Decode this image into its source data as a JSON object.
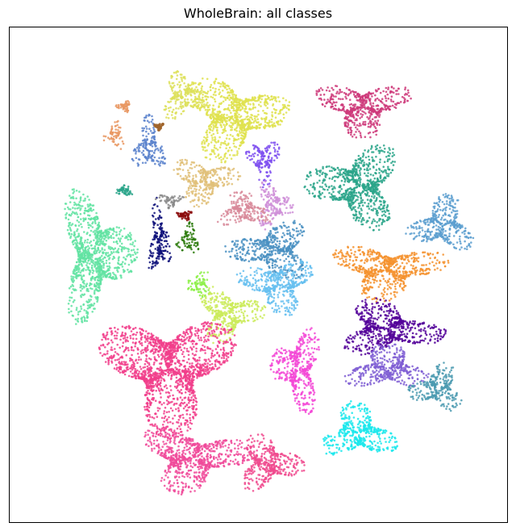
{
  "chart_data": {
    "type": "scatter",
    "title": "WholeBrain: all classes",
    "xlabel": "",
    "ylabel": "",
    "xticks": [],
    "yticks": [],
    "grid": false,
    "legend": "none",
    "xlim": [
      0,
      100
    ],
    "ylim": [
      0,
      100
    ],
    "clusters": [
      {
        "color": "#ce3a7a",
        "cx": 71,
        "cy": 84,
        "rx": 10,
        "ry": 6
      },
      {
        "color": "#dfe24d",
        "cx": 45,
        "cy": 82,
        "rx": 11,
        "ry": 9
      },
      {
        "color": "#dde15a",
        "cx": 35,
        "cy": 86,
        "rx": 5,
        "ry": 5
      },
      {
        "color": "#5a82cc",
        "cx": 28,
        "cy": 76,
        "rx": 3.5,
        "ry": 6
      },
      {
        "color": "#e99863",
        "cx": 21,
        "cy": 78,
        "rx": 2.5,
        "ry": 3
      },
      {
        "color": "#2aa58a",
        "cx": 70,
        "cy": 68,
        "rx": 10,
        "ry": 9
      },
      {
        "color": "#7e4ff0",
        "cx": 51,
        "cy": 73,
        "rx": 3.5,
        "ry": 5
      },
      {
        "color": "#e0bf78",
        "cx": 39,
        "cy": 69,
        "rx": 7,
        "ry": 5
      },
      {
        "color": "#cf8fd8",
        "cx": 53,
        "cy": 64,
        "rx": 4,
        "ry": 5
      },
      {
        "color": "#d88a9a",
        "cx": 47,
        "cy": 63,
        "rx": 6,
        "ry": 4
      },
      {
        "color": "#5b9ecf",
        "cx": 87,
        "cy": 60,
        "rx": 7,
        "ry": 6
      },
      {
        "color": "#4a90c2",
        "cx": 53,
        "cy": 55,
        "rx": 9,
        "ry": 6
      },
      {
        "color": "#66bff0",
        "cx": 54,
        "cy": 48,
        "rx": 8,
        "ry": 6
      },
      {
        "color": "#f5922e",
        "cx": 76,
        "cy": 51,
        "rx": 12,
        "ry": 6
      },
      {
        "color": "#62e3a2",
        "cx": 17,
        "cy": 54,
        "rx": 8,
        "ry": 14
      },
      {
        "color": "#0d0f79",
        "cx": 30,
        "cy": 57,
        "rx": 2.5,
        "ry": 8
      },
      {
        "color": "#2c7a0c",
        "cx": 36,
        "cy": 57,
        "rx": 2.5,
        "ry": 3.5
      },
      {
        "color": "#8ef04a",
        "cx": 38,
        "cy": 48,
        "rx": 3,
        "ry": 3
      },
      {
        "color": "#8b0c0c",
        "cx": 35,
        "cy": 62,
        "rx": 2,
        "ry": 1
      },
      {
        "color": "#8a8a8a",
        "cx": 32,
        "cy": 65,
        "rx": 3,
        "ry": 1.5
      },
      {
        "color": "#cbeb5a",
        "cx": 44,
        "cy": 42,
        "rx": 7,
        "ry": 6
      },
      {
        "color": "#520099",
        "cx": 76,
        "cy": 39,
        "rx": 11,
        "ry": 6
      },
      {
        "color": "#7f5ed4",
        "cx": 76,
        "cy": 31,
        "rx": 9,
        "ry": 5
      },
      {
        "color": "#4b9ab0",
        "cx": 86,
        "cy": 27,
        "rx": 6,
        "ry": 5
      },
      {
        "color": "#f348d6",
        "cx": 58,
        "cy": 31,
        "rx": 5.5,
        "ry": 9
      },
      {
        "color": "#f13e8b",
        "cx": 32,
        "cy": 31,
        "rx": 14,
        "ry": 13
      },
      {
        "color": "#f04a9a",
        "cx": 37,
        "cy": 13,
        "rx": 12,
        "ry": 7
      },
      {
        "color": "#f04a8e",
        "cx": 52,
        "cy": 12,
        "rx": 7,
        "ry": 6
      },
      {
        "color": "#1be8ec",
        "cx": 70,
        "cy": 18,
        "rx": 8,
        "ry": 6
      },
      {
        "color": "#2aa58a",
        "cx": 23,
        "cy": 67,
        "rx": 2,
        "ry": 1.2
      },
      {
        "color": "#e99863",
        "cx": 23,
        "cy": 84,
        "rx": 1.5,
        "ry": 1.2
      },
      {
        "color": "#a0642a",
        "cx": 30,
        "cy": 80,
        "rx": 1,
        "ry": 0.8
      }
    ]
  }
}
